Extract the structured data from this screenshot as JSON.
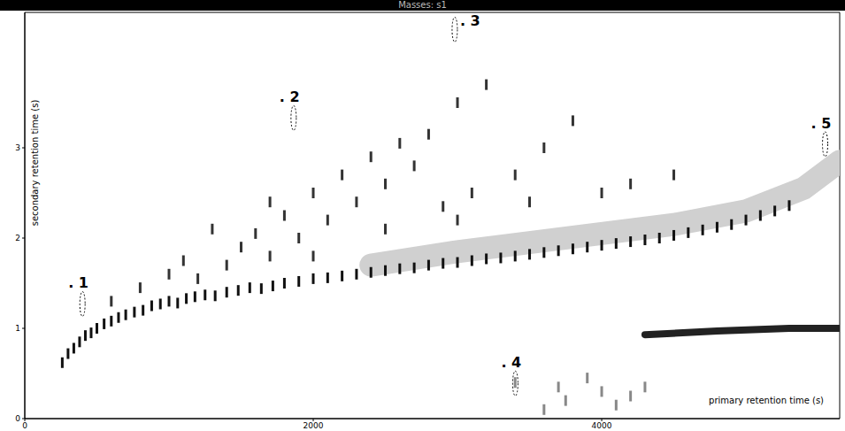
{
  "chart_data": {
    "type": "scatter",
    "title": "Masses: s1",
    "x_label": "primary retention time (s)",
    "y_label": "secondary retention time (s)",
    "xlim": [
      0,
      5650
    ],
    "xticks": [
      0,
      2000,
      4000
    ],
    "ylim": [
      0,
      4.5
    ],
    "yticks": [
      0,
      1,
      2,
      3
    ],
    "grid": false,
    "series": [
      {
        "type": "line",
        "color": "#d0d0d0",
        "line_style": "wide",
        "x": [
          2400,
          3000,
          3500,
          4000,
          4500,
          5000,
          5400,
          5650
        ],
        "y": [
          1.7,
          1.85,
          1.95,
          2.05,
          2.15,
          2.3,
          2.55,
          2.85
        ]
      },
      {
        "type": "line",
        "color": "#222222",
        "line_style": "medium",
        "x": [
          4300,
          4800,
          5300,
          5650
        ],
        "y": [
          0.93,
          0.97,
          1.0,
          1.0
        ]
      },
      {
        "type": "scatter",
        "color": "#111111",
        "marker": "peak",
        "x": [
          260,
          300,
          340,
          380,
          420,
          460,
          500,
          550,
          600,
          650,
          700,
          760,
          820,
          880,
          940,
          1000,
          1060,
          1120,
          1180,
          1250,
          1320,
          1400,
          1480,
          1560,
          1640,
          1720,
          1800,
          1900,
          2000,
          2100,
          2200,
          2300,
          2400,
          2500,
          2600,
          2700,
          2800,
          2900,
          3000,
          3100,
          3200,
          3300,
          3400,
          3500,
          3600,
          3700,
          3800,
          3900,
          4000,
          4100,
          4200,
          4300,
          4400,
          4500,
          4600,
          4700,
          4800,
          4900,
          5000,
          5100,
          5200,
          5300
        ],
        "y": [
          0.62,
          0.72,
          0.78,
          0.85,
          0.92,
          0.95,
          1.0,
          1.05,
          1.08,
          1.12,
          1.15,
          1.18,
          1.2,
          1.25,
          1.27,
          1.3,
          1.28,
          1.33,
          1.35,
          1.37,
          1.36,
          1.4,
          1.42,
          1.45,
          1.44,
          1.47,
          1.5,
          1.52,
          1.55,
          1.56,
          1.58,
          1.6,
          1.62,
          1.64,
          1.66,
          1.67,
          1.7,
          1.72,
          1.73,
          1.75,
          1.77,
          1.78,
          1.8,
          1.82,
          1.84,
          1.86,
          1.88,
          1.9,
          1.92,
          1.94,
          1.96,
          1.98,
          2.0,
          2.03,
          2.06,
          2.09,
          2.12,
          2.15,
          2.2,
          2.25,
          2.3,
          2.36
        ]
      },
      {
        "type": "scatter",
        "color": "#333333",
        "marker": "peak",
        "x": [
          600,
          800,
          1000,
          1100,
          1200,
          1400,
          1500,
          1600,
          1700,
          1800,
          1900,
          2000,
          2100,
          2200,
          2300,
          2400,
          2500,
          2600,
          2700,
          2800,
          2900,
          3000,
          3100,
          3200,
          3400,
          3600,
          3800,
          4000,
          4200,
          4500,
          1300,
          1700,
          2000,
          2500,
          3000,
          3500
        ],
        "y": [
          1.3,
          1.45,
          1.6,
          1.75,
          1.55,
          1.7,
          1.9,
          2.05,
          1.8,
          2.25,
          2.0,
          2.5,
          2.2,
          2.7,
          2.4,
          2.9,
          2.6,
          3.05,
          2.8,
          3.15,
          2.35,
          3.5,
          2.5,
          3.7,
          2.7,
          3.0,
          3.3,
          2.5,
          2.6,
          2.7,
          2.1,
          2.4,
          1.8,
          2.1,
          2.2,
          2.4
        ]
      },
      {
        "type": "scatter",
        "color": "#888888",
        "marker": "peak",
        "x": [
          3400,
          3700,
          3750,
          3900,
          4000,
          4100,
          4200,
          3600,
          4300
        ],
        "y": [
          0.4,
          0.35,
          0.2,
          0.45,
          0.3,
          0.15,
          0.25,
          0.1,
          0.35
        ]
      }
    ],
    "annotations": [
      {
        "text": ". 1",
        "x": 400,
        "y": 1.27
      },
      {
        "text": ". 2",
        "x": 1864,
        "y": 3.33
      },
      {
        "text": ". 3",
        "x": 2981,
        "y": 4.31
      },
      {
        "text": ". 4",
        "x": 3401,
        "y": 0.39
      },
      {
        "text": ". 5",
        "x": 5549,
        "y": 3.04
      }
    ]
  }
}
